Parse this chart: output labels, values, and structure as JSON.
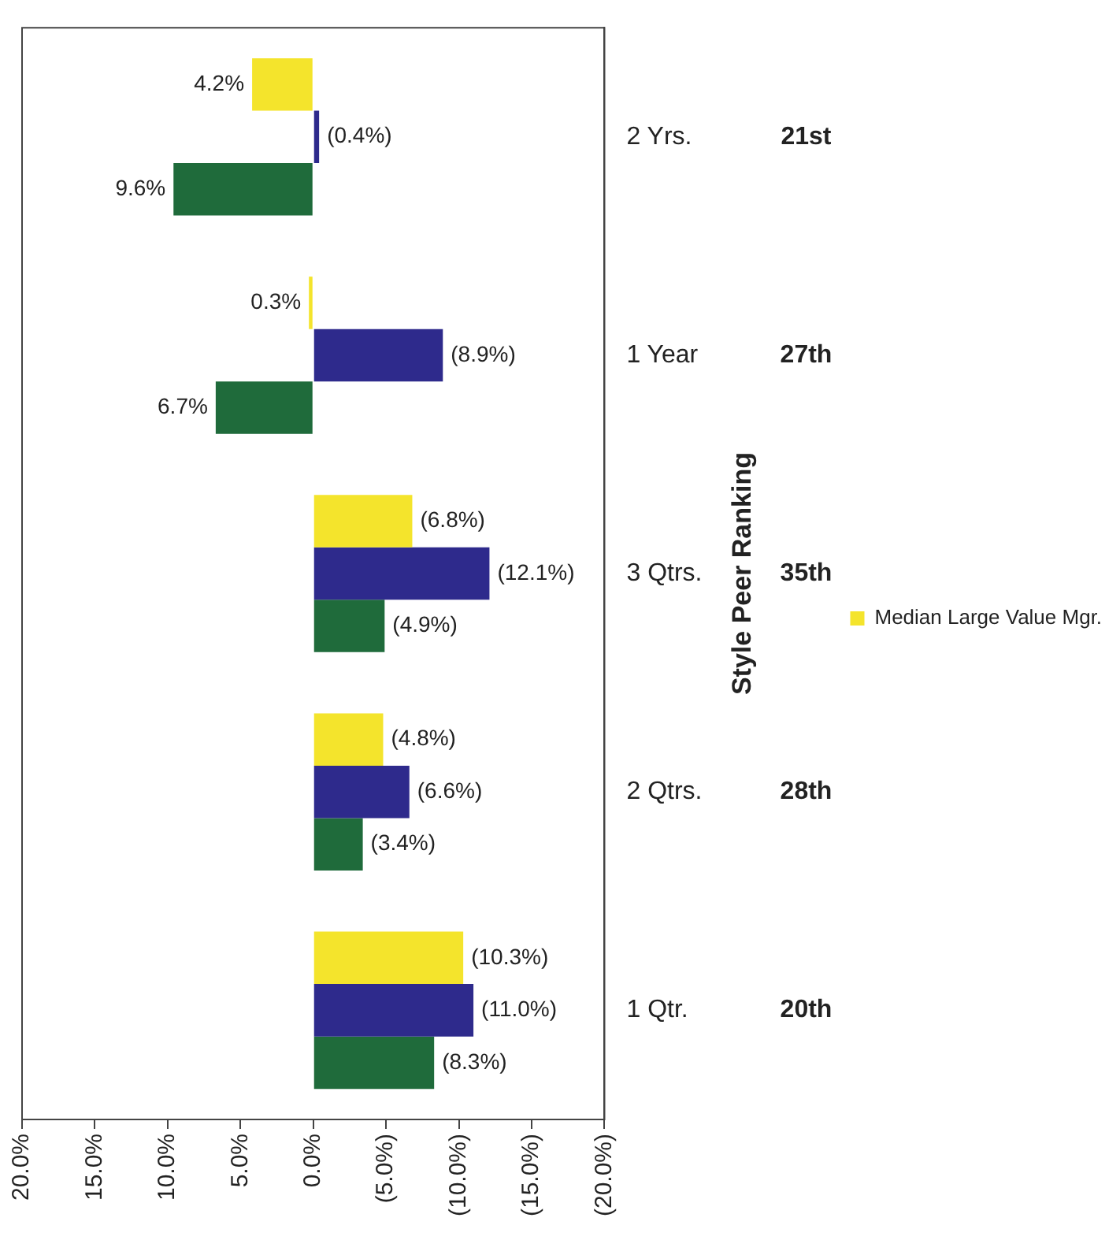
{
  "chart_data": {
    "type": "bar",
    "orientation": "horizontal",
    "ylabel": "Style Peer Ranking",
    "categories": [
      "2 Yrs.",
      "1 Year",
      "3 Qtrs.",
      "2 Qtrs.",
      "1 Qtr."
    ],
    "series": [
      {
        "color": "#1f6b3b",
        "values": [
          9.6,
          6.7,
          -4.9,
          -3.4,
          -8.3
        ],
        "value_labels": [
          "9.6%",
          "6.7%",
          "(4.9%)",
          "(3.4%)",
          "(8.3%)"
        ]
      },
      {
        "color": "#2e2a8c",
        "values": [
          -0.4,
          -8.9,
          -12.1,
          -6.6,
          -11.0
        ],
        "value_labels": [
          "(0.4%)",
          "(8.9%)",
          "(12.1%)",
          "(6.6%)",
          "(11.0%)"
        ]
      },
      {
        "name": "Median Large Value Mgr.",
        "color": "#f4e42c",
        "values": [
          4.2,
          0.3,
          -6.8,
          -4.8,
          -10.3
        ],
        "value_labels": [
          "4.2%",
          "0.3%",
          "(6.8%)",
          "(4.8%)",
          "(10.3%)"
        ]
      }
    ],
    "xlim": [
      20,
      -20
    ],
    "xticks": [
      {
        "value": 20,
        "label": "20.0%"
      },
      {
        "value": 15,
        "label": "15.0%"
      },
      {
        "value": 10,
        "label": "10.0%"
      },
      {
        "value": 5,
        "label": "5.0%"
      },
      {
        "value": 0,
        "label": "0.0%"
      },
      {
        "value": -5,
        "label": "(5.0%)"
      },
      {
        "value": -10,
        "label": "(10.0%)"
      },
      {
        "value": -15,
        "label": "(15.0%)"
      },
      {
        "value": -20,
        "label": "(20.0%)"
      }
    ],
    "annotations": [
      "21st",
      "27th",
      "35th",
      "28th",
      "20th"
    ],
    "legend": "right",
    "grid": false
  }
}
